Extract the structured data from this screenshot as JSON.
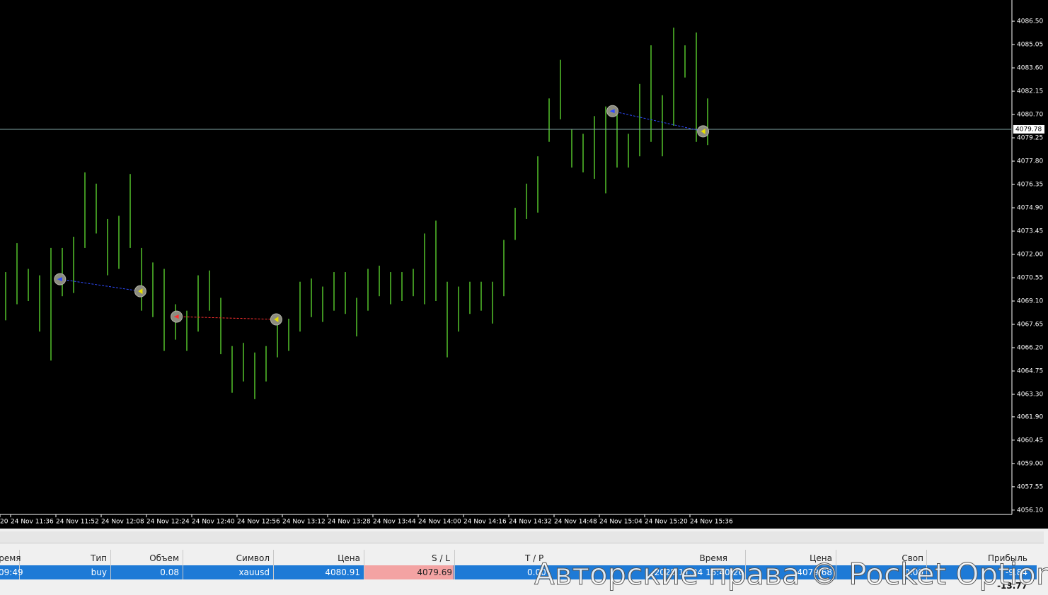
{
  "chart_data": {
    "type": "ohlc-range",
    "color": "#54c22a",
    "high": [
      4070.9,
      4072.7,
      4071.1,
      4070.7,
      4072.4,
      4072.4,
      4073.1,
      4077.1,
      4076.4,
      4074.2,
      4074.4,
      4077.0,
      4072.4,
      4071.5,
      4071.1,
      4068.9,
      4068.5,
      4070.7,
      4071.0,
      4069.3,
      4066.3,
      4066.5,
      4065.9,
      4066.3,
      4068.3,
      4068.0,
      4070.3,
      4070.5,
      4070.0,
      4070.9,
      4070.9,
      4069.3,
      4071.1,
      4071.3,
      4070.9,
      4070.9,
      4071.1,
      4073.3,
      4074.1,
      4070.3,
      4070.0,
      4070.3,
      4070.3,
      4070.3,
      4072.9,
      4074.9,
      4076.4,
      4078.1,
      4081.7,
      4084.1,
      4079.8,
      4079.5,
      4080.6,
      4081.2,
      4080.8,
      4079.5,
      4082.6,
      4085.0,
      4081.9,
      4086.1,
      4085.0,
      4085.8,
      4081.7
    ],
    "low": [
      4067.9,
      4068.9,
      4069.1,
      4067.2,
      4065.4,
      4069.4,
      4069.6,
      4072.4,
      4073.3,
      4070.7,
      4071.1,
      4072.4,
      4068.5,
      4068.1,
      4066.0,
      4066.7,
      4066.0,
      4067.2,
      4068.5,
      4065.8,
      4063.4,
      4064.1,
      4063.0,
      4064.1,
      4065.6,
      4066.0,
      4067.2,
      4068.1,
      4067.8,
      4068.5,
      4068.3,
      4066.9,
      4068.5,
      4069.4,
      4068.9,
      4069.1,
      4069.4,
      4068.9,
      4069.1,
      4065.6,
      4067.2,
      4068.3,
      4068.5,
      4067.7,
      4069.4,
      4072.9,
      4074.2,
      4074.6,
      4079.0,
      4080.4,
      4077.4,
      4077.1,
      4076.7,
      4075.8,
      4077.4,
      4077.4,
      4078.1,
      4079.0,
      4078.1,
      4080.0,
      4083.0,
      4079.0,
      4078.8
    ],
    "ylim": [
      4055.83,
      4087.82
    ],
    "yticks": [
      {
        "value": 4086.5,
        "label": "4086.50"
      },
      {
        "value": 4085.05,
        "label": "4085.05"
      },
      {
        "value": 4083.6,
        "label": "4083.60"
      },
      {
        "value": 4082.15,
        "label": "4082.15"
      },
      {
        "value": 4080.7,
        "label": "4080.70"
      },
      {
        "value": 4079.25,
        "label": "4079.25"
      },
      {
        "value": 4077.8,
        "label": "4077.80"
      },
      {
        "value": 4076.35,
        "label": "4076.35"
      },
      {
        "value": 4074.9,
        "label": "4074.90"
      },
      {
        "value": 4073.45,
        "label": "4073.45"
      },
      {
        "value": 4072,
        "label": "4072.00"
      },
      {
        "value": 4070.55,
        "label": "4070.55"
      },
      {
        "value": 4069.1,
        "label": "4069.10"
      },
      {
        "value": 4067.65,
        "label": "4067.65"
      },
      {
        "value": 4066.2,
        "label": "4066.20"
      },
      {
        "value": 4064.75,
        "label": "4064.75"
      },
      {
        "value": 4063.3,
        "label": "4063.30"
      },
      {
        "value": 4061.9,
        "label": "4061.90"
      },
      {
        "value": 4060.45,
        "label": "4060.45"
      },
      {
        "value": 4059,
        "label": "4059.00"
      },
      {
        "value": 4057.55,
        "label": "4057.55"
      },
      {
        "value": 4056.1,
        "label": "4056.10"
      }
    ],
    "xticks": [
      "20",
      "24 Nov 11:36",
      "24 Nov 11:52",
      "24 Nov 12:08",
      "24 Nov 12:24",
      "24 Nov 12:40",
      "24 Nov 12:56",
      "24 Nov 13:12",
      "24 Nov 13:28",
      "24 Nov 13:44",
      "24 Nov 14:00",
      "24 Nov 14:16",
      "24 Nov 14:32",
      "24 Nov 14:48",
      "24 Nov 15:04",
      "24 Nov 15:20",
      "24 Nov 15:36"
    ],
    "current_price": {
      "value": 4079.78,
      "label": "4079.78"
    },
    "current_price_color": "#7fa3a3",
    "trades": [
      {
        "x_open": 4.8,
        "open_price": 4070.46,
        "x_close": 11.9,
        "close_price": 4069.71,
        "color": "#2f4bff"
      },
      {
        "x_open": 15.1,
        "open_price": 4068.13,
        "x_close": 23.9,
        "close_price": 4067.96,
        "color": "#ff3030"
      },
      {
        "x_open": 53.6,
        "open_price": 4080.91,
        "x_close": 61.6,
        "close_price": 4079.65,
        "color": "#2f4bff"
      }
    ]
  },
  "table": {
    "headers": [
      "Время",
      "Тип",
      "Объем",
      "Символ",
      "Цена",
      "S / L",
      "T / P",
      "Время",
      "Цена",
      "Своп",
      "Прибыль"
    ],
    "row": [
      "09:49",
      "buy",
      "0.08",
      "xauusd",
      "4080.91",
      "4079.69",
      "0.00",
      "2025.11.24 15:40:26",
      "4079.68",
      "0.00",
      "-9.84"
    ],
    "total": "-13.77"
  },
  "watermark": "Авторские права © Pocket Option"
}
